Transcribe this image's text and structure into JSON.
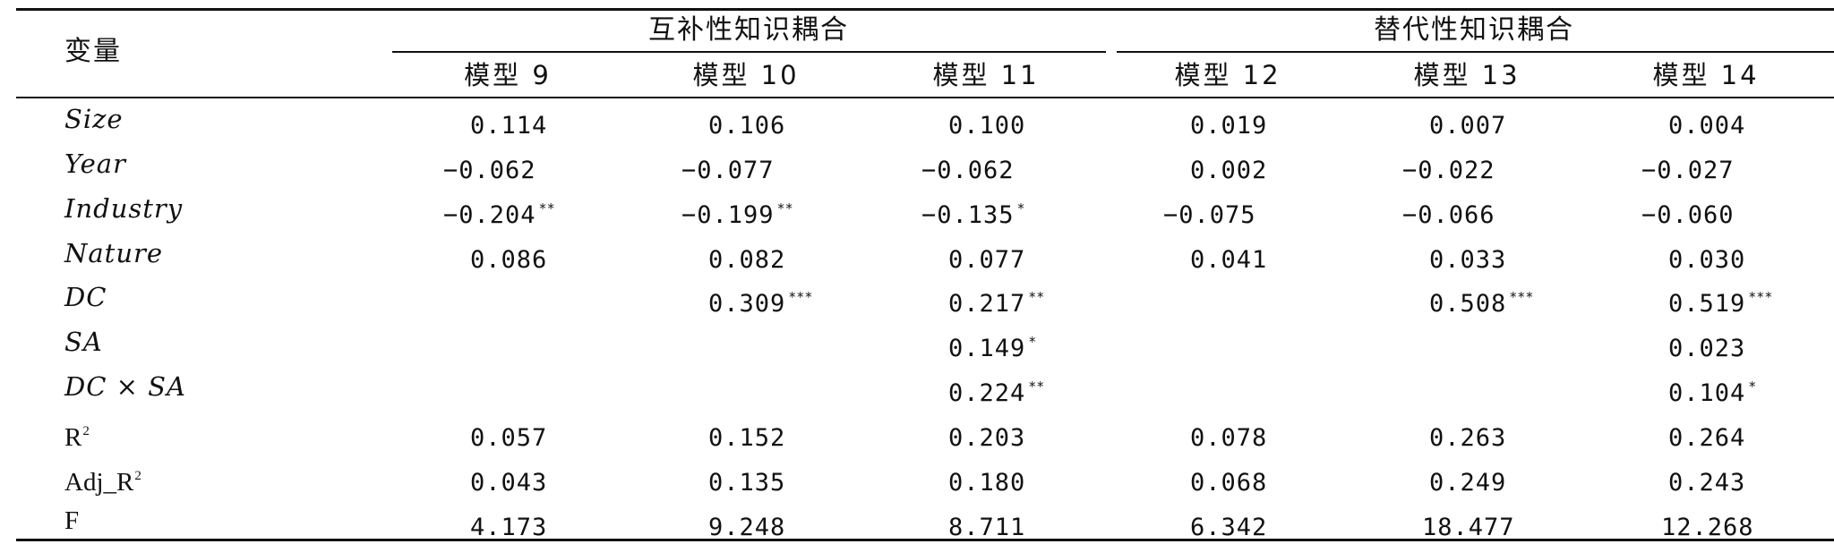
{
  "table": {
    "stub_header": "变量",
    "groups": [
      {
        "label": "互补性知识耦合"
      },
      {
        "label": "替代性知识耦合"
      }
    ],
    "models": [
      "模型 9",
      "模型 10",
      "模型 11",
      "模型 12",
      "模型 13",
      "模型 14"
    ],
    "rows": [
      {
        "label": "Size",
        "cells": [
          {
            "v": "0.114",
            "s": ""
          },
          {
            "v": "0.106",
            "s": ""
          },
          {
            "v": "0.100",
            "s": ""
          },
          {
            "v": "0.019",
            "s": ""
          },
          {
            "v": "0.007",
            "s": ""
          },
          {
            "v": "0.004",
            "s": ""
          }
        ]
      },
      {
        "label": "Year",
        "cells": [
          {
            "v": "−0.062",
            "s": ""
          },
          {
            "v": "−0.077",
            "s": ""
          },
          {
            "v": "−0.062",
            "s": ""
          },
          {
            "v": "0.002",
            "s": ""
          },
          {
            "v": "−0.022",
            "s": ""
          },
          {
            "v": "−0.027",
            "s": ""
          }
        ]
      },
      {
        "label": "Industry",
        "cells": [
          {
            "v": "−0.204",
            "s": "**"
          },
          {
            "v": "−0.199",
            "s": "**"
          },
          {
            "v": "−0.135",
            "s": "*"
          },
          {
            "v": "−0.075",
            "s": ""
          },
          {
            "v": "−0.066",
            "s": ""
          },
          {
            "v": "−0.060",
            "s": ""
          }
        ]
      },
      {
        "label": "Nature",
        "cells": [
          {
            "v": "0.086",
            "s": ""
          },
          {
            "v": "0.082",
            "s": ""
          },
          {
            "v": "0.077",
            "s": ""
          },
          {
            "v": "0.041",
            "s": ""
          },
          {
            "v": "0.033",
            "s": ""
          },
          {
            "v": "0.030",
            "s": ""
          }
        ]
      },
      {
        "label": "DC",
        "cells": [
          {
            "v": "",
            "s": ""
          },
          {
            "v": "0.309",
            "s": "***"
          },
          {
            "v": "0.217",
            "s": "**"
          },
          {
            "v": "",
            "s": ""
          },
          {
            "v": "0.508",
            "s": "***"
          },
          {
            "v": "0.519",
            "s": "***"
          }
        ]
      },
      {
        "label": "SA",
        "cells": [
          {
            "v": "",
            "s": ""
          },
          {
            "v": "",
            "s": ""
          },
          {
            "v": "0.149",
            "s": "*"
          },
          {
            "v": "",
            "s": ""
          },
          {
            "v": "",
            "s": ""
          },
          {
            "v": "0.023",
            "s": ""
          }
        ]
      },
      {
        "label": "DC × SA",
        "cells": [
          {
            "v": "",
            "s": ""
          },
          {
            "v": "",
            "s": ""
          },
          {
            "v": "0.224",
            "s": "**"
          },
          {
            "v": "",
            "s": ""
          },
          {
            "v": "",
            "s": ""
          },
          {
            "v": "0.104",
            "s": "*"
          }
        ]
      },
      {
        "label": "R",
        "label_sup": "2",
        "plain": true,
        "cells": [
          {
            "v": "0.057",
            "s": ""
          },
          {
            "v": "0.152",
            "s": ""
          },
          {
            "v": "0.203",
            "s": ""
          },
          {
            "v": "0.078",
            "s": ""
          },
          {
            "v": "0.263",
            "s": ""
          },
          {
            "v": "0.264",
            "s": ""
          }
        ]
      },
      {
        "label": "Adj_R",
        "label_sup": "2",
        "plain": true,
        "cells": [
          {
            "v": "0.043",
            "s": ""
          },
          {
            "v": "0.135",
            "s": ""
          },
          {
            "v": "0.180",
            "s": ""
          },
          {
            "v": "0.068",
            "s": ""
          },
          {
            "v": "0.249",
            "s": ""
          },
          {
            "v": "0.243",
            "s": ""
          }
        ]
      },
      {
        "label": "F",
        "plain": true,
        "cells": [
          {
            "v": "4.173",
            "s": ""
          },
          {
            "v": "9.248",
            "s": ""
          },
          {
            "v": "8.711",
            "s": ""
          },
          {
            "v": "6.342",
            "s": ""
          },
          {
            "v": "18.477",
            "s": ""
          },
          {
            "v": "12.268",
            "s": ""
          }
        ]
      }
    ]
  }
}
